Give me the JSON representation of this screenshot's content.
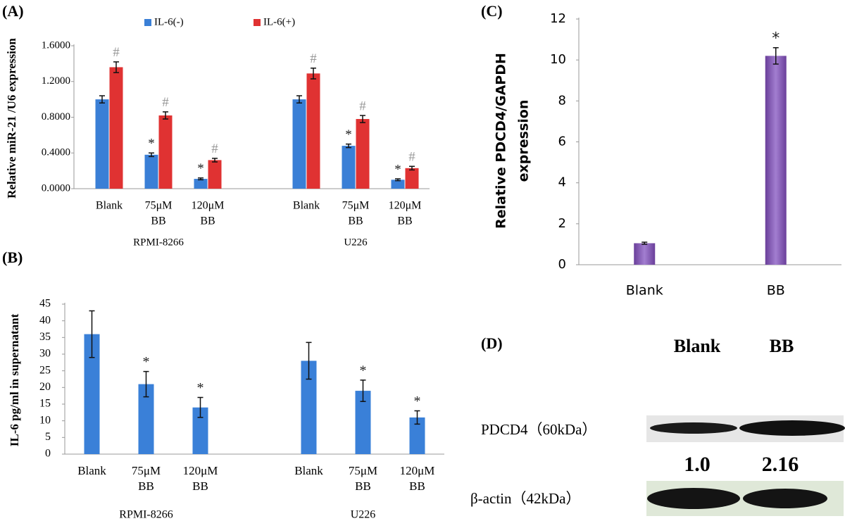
{
  "chart_data": [
    {
      "type": "bar",
      "panel": "(A)",
      "ylabel": [
        "Relative miR-21 /U6 expression"
      ],
      "categories": [
        [
          "Blank"
        ],
        [
          "75μM",
          "BB"
        ],
        [
          "120μM",
          "BB"
        ],
        [
          "Blank"
        ],
        [
          "75μM",
          "BB"
        ],
        [
          "120μM",
          "BB"
        ]
      ],
      "groups": [
        "RPMI-8266",
        "U226"
      ],
      "series": [
        {
          "name": "IL-6(-)",
          "color": "#3a7fd6",
          "values": [
            1.0,
            0.38,
            0.11,
            1.0,
            0.48,
            0.1
          ],
          "errors": [
            0.04,
            0.02,
            0.01,
            0.04,
            0.02,
            0.01
          ],
          "labels": [
            null,
            "*",
            "*",
            null,
            "*",
            "*"
          ]
        },
        {
          "name": "IL-6(+)",
          "color": "#e03232",
          "values": [
            1.36,
            0.82,
            0.32,
            1.29,
            0.78,
            0.23
          ],
          "errors": [
            0.06,
            0.04,
            0.02,
            0.06,
            0.04,
            0.02
          ],
          "labels": [
            "#",
            "#",
            "#",
            "#",
            "#",
            "#"
          ]
        }
      ],
      "ylim": [
        0,
        1.6
      ],
      "yticks": [
        {
          "value": 0,
          "label": "0.0000"
        },
        {
          "value": 0.4,
          "label": "0.4000"
        },
        {
          "value": 0.8,
          "label": "0.8000"
        },
        {
          "value": 1.2,
          "label": "1.2000"
        },
        {
          "value": 1.6,
          "label": "1.6000"
        }
      ]
    },
    {
      "type": "bar",
      "panel": "(B)",
      "ylabel": [
        "IL-6 pg/ml in supernatant"
      ],
      "categories": [
        [
          "Blank"
        ],
        [
          "75μM",
          "BB"
        ],
        [
          "120μM",
          "BB"
        ],
        [
          "Blank"
        ],
        [
          "75μM",
          "BB"
        ],
        [
          "120μM",
          "BB"
        ]
      ],
      "groups": [
        "RPMI-8266",
        "U226"
      ],
      "values": [
        36,
        21,
        14,
        28,
        19,
        11
      ],
      "errors": [
        7,
        3.8,
        3,
        5.5,
        3.2,
        2
      ],
      "labels": [
        null,
        "*",
        "*",
        null,
        "*",
        "*"
      ],
      "color": "#3a80d8",
      "ylim": [
        0,
        45
      ],
      "yticks": [
        0,
        5,
        10,
        15,
        20,
        25,
        30,
        35,
        40,
        45
      ]
    },
    {
      "type": "bar",
      "panel": "(C)",
      "ylabel": [
        "Relative PDCD4/GAPDH",
        "expression"
      ],
      "categories": [
        [
          "Blank"
        ],
        [
          "BB"
        ]
      ],
      "values": [
        1.05,
        10.2
      ],
      "errors": [
        0.05,
        0.4
      ],
      "labels": [
        null,
        "*"
      ],
      "color": "#8a5fb8",
      "ylim": [
        0,
        12
      ],
      "yticks": [
        0,
        2,
        4,
        6,
        8,
        10,
        12
      ]
    }
  ],
  "blot": {
    "panel": "(D)",
    "columns": [
      "Blank",
      "BB"
    ],
    "rows": [
      {
        "label": "PDCD4（60kDa）",
        "quant": [
          "1.0",
          "2.16"
        ]
      },
      {
        "label": "β-actin（42kDa）"
      }
    ]
  }
}
